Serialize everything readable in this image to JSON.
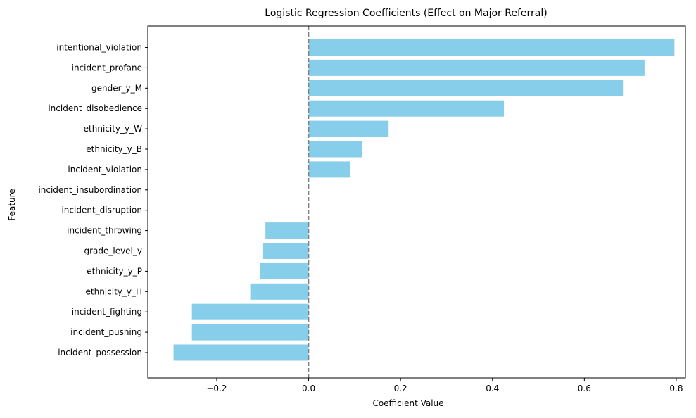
{
  "chart_data": {
    "type": "bar",
    "orientation": "horizontal",
    "title": "Logistic Regression Coefficients (Effect on Major Referral)",
    "xlabel": "Coefficient Value",
    "ylabel": "Feature",
    "categories": [
      "intentional_violation",
      "incident_profane",
      "gender_y_M",
      "incident_disobedience",
      "ethnicity_y_W",
      "ethnicity_y_B",
      "incident_violation",
      "incident_insubordination",
      "incident_disruption",
      "incident_throwing",
      "grade_level_y",
      "ethnicity_y_P",
      "ethnicity_y_H",
      "incident_fighting",
      "incident_pushing",
      "incident_possession"
    ],
    "values": [
      0.796,
      0.731,
      0.684,
      0.425,
      0.174,
      0.117,
      0.09,
      0.0,
      0.0,
      -0.094,
      -0.099,
      -0.106,
      -0.127,
      -0.254,
      -0.254,
      -0.294
    ],
    "xlim": [
      -0.35,
      0.82
    ],
    "xticks": [
      -0.2,
      0.0,
      0.2,
      0.4,
      0.6,
      0.8
    ],
    "xtick_labels": [
      "−0.2",
      "0.0",
      "0.2",
      "0.4",
      "0.6",
      "0.8"
    ],
    "reference_line": 0.0,
    "grid": false,
    "bar_color": "#87CEEB",
    "reference_line_color": "#808080"
  }
}
